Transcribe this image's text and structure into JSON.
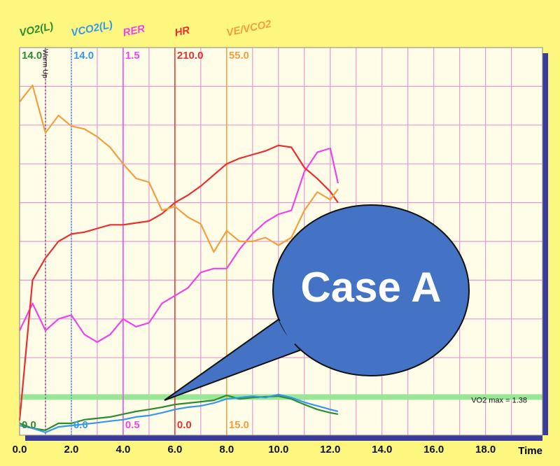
{
  "chart_data": {
    "type": "line",
    "x": [
      0,
      0.5,
      1,
      1.5,
      2,
      2.5,
      3,
      3.5,
      4,
      4.5,
      5,
      5.5,
      6,
      6.5,
      7,
      7.5,
      8,
      8.5,
      9,
      9.5,
      10,
      10.5,
      11,
      11.5,
      12,
      12.3
    ],
    "xlim": [
      0,
      20.2
    ],
    "xticks": [
      {
        "value": 0,
        "label": "0.0"
      },
      {
        "value": 2,
        "label": "2.0"
      },
      {
        "value": 4,
        "label": "4.0"
      },
      {
        "value": 6,
        "label": "6.0"
      },
      {
        "value": 8,
        "label": "8.0"
      },
      {
        "value": 10,
        "label": "10.0"
      },
      {
        "value": 12,
        "label": "12.0"
      },
      {
        "value": 14,
        "label": "14.0"
      },
      {
        "value": 16,
        "label": "16.0"
      },
      {
        "value": 18,
        "label": "18.0"
      }
    ],
    "xgrid": [
      1,
      3,
      5,
      7,
      9,
      11,
      13,
      15,
      17,
      19
    ],
    "y_grid_divisions": 10,
    "xlabel": "Time",
    "series": [
      {
        "name": "VO2(L)",
        "color": "#2e8b2e",
        "ylim": [
          0,
          14
        ],
        "yticks": [
          {
            "value": 0,
            "label": "0.0"
          },
          {
            "value": 14,
            "label": "14.0"
          }
        ],
        "values": [
          0.43,
          0.25,
          0.18,
          0.43,
          0.43,
          0.56,
          0.61,
          0.66,
          0.76,
          0.86,
          0.93,
          1.01,
          1.11,
          1.16,
          1.21,
          1.26,
          1.44,
          1.31,
          1.36,
          1.39,
          1.41,
          1.31,
          1.11,
          0.93,
          0.81,
          0.76
        ]
      },
      {
        "name": "VCO2(L)",
        "color": "#3399ee",
        "ylim": [
          0,
          14
        ],
        "yticks": [
          {
            "value": 0,
            "label": "0.0"
          },
          {
            "value": 14,
            "label": "14.0"
          }
        ],
        "values": [
          0.35,
          0.25,
          0.1,
          0.3,
          0.35,
          0.4,
          0.45,
          0.51,
          0.56,
          0.66,
          0.71,
          0.81,
          0.93,
          1.01,
          1.06,
          1.16,
          1.31,
          1.36,
          1.41,
          1.36,
          1.47,
          1.36,
          1.19,
          1.06,
          0.93,
          0.86
        ]
      },
      {
        "name": "RER",
        "color": "#ee44ee",
        "ylim": [
          0.5,
          1.5
        ],
        "yticks": [
          0.5,
          1.5
        ],
        "values": [
          0.77,
          0.84,
          0.77,
          0.8,
          0.81,
          0.76,
          0.74,
          0.76,
          0.8,
          0.78,
          0.79,
          0.84,
          0.86,
          0.88,
          0.92,
          0.93,
          0.93,
          0.98,
          1.02,
          1.05,
          1.07,
          1.08,
          1.18,
          1.23,
          1.24,
          1.15
        ]
      },
      {
        "name": "HR",
        "color": "#e83030",
        "ylim": [
          0,
          210
        ],
        "yticks": [
          {
            "value": 0,
            "label": "0.0"
          },
          {
            "value": 210,
            "label": "210.0"
          }
        ],
        "values": [
          8,
          84,
          96,
          105,
          109,
          110,
          112,
          114,
          114,
          115,
          116,
          120,
          126,
          130,
          135,
          141,
          147,
          150,
          152,
          154,
          157,
          156,
          145,
          139,
          132,
          126
        ]
      },
      {
        "name": "VE/VCO2",
        "color": "#f0a040",
        "ylim": [
          15,
          55
        ],
        "yticks": [
          {
            "value": 15,
            "label": "15.0"
          },
          {
            "value": 55,
            "label": "55.0"
          }
        ],
        "values": [
          49.4,
          51.1,
          46.2,
          48.0,
          46.9,
          46.6,
          45.8,
          44.7,
          43.0,
          41.5,
          41.1,
          38.2,
          38.6,
          37.5,
          36.8,
          33.9,
          36.1,
          35.0,
          35.0,
          35.4,
          34.6,
          35.4,
          38.2,
          40.1,
          39.3,
          40.4
        ]
      }
    ],
    "reference": {
      "label": "VO2 max = 1.38",
      "value": 1.38
    },
    "marker": {
      "label": "Warm Up",
      "x": 1
    },
    "callout": "Case A"
  }
}
